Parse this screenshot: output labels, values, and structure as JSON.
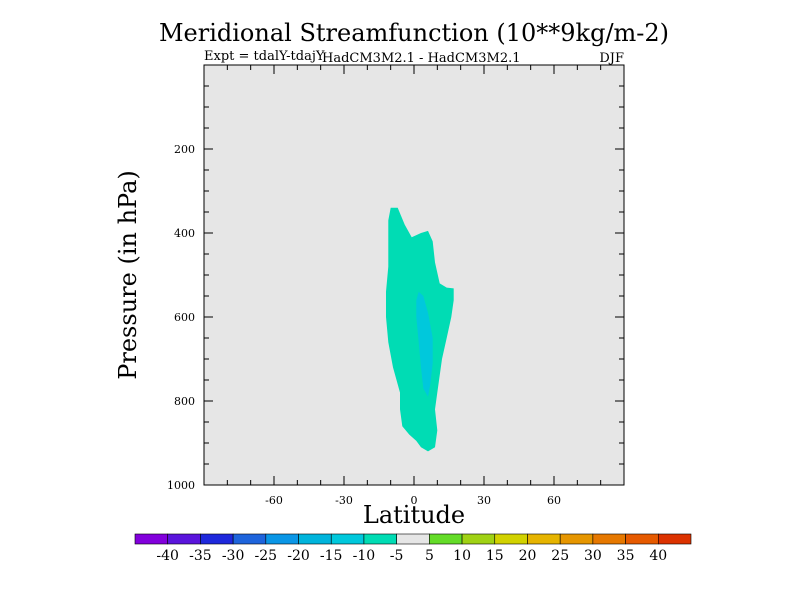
{
  "header": {
    "title": "Meridional Streamfunction (10**9kg/m-2)",
    "experiment": "Expt = tdalY-tdajY",
    "models": "HadCM3M2.1 - HadCM3M2.1",
    "season": "DJF"
  },
  "chart_data": {
    "type": "contour",
    "title": "Meridional Streamfunction (10**9kg/m-2)",
    "xlabel": "Latitude",
    "ylabel": "Pressure (in hPa)",
    "xlim": [
      -90,
      90
    ],
    "ylim": [
      0,
      1000
    ],
    "y_inverted": true,
    "x_ticks": [
      -60,
      -30,
      0,
      30,
      60
    ],
    "y_ticks": [
      200,
      400,
      600,
      800,
      1000
    ],
    "background_color": "#e6e6e6",
    "contour_regions": [
      {
        "name": "-10 to -5",
        "color": "#00dcb4",
        "points": [
          [
            -10,
            340
          ],
          [
            -7,
            340
          ],
          [
            -4,
            380
          ],
          [
            -1,
            410
          ],
          [
            3,
            400
          ],
          [
            6,
            395
          ],
          [
            8,
            420
          ],
          [
            9,
            470
          ],
          [
            11,
            520
          ],
          [
            14,
            530
          ],
          [
            17,
            532
          ],
          [
            17,
            560
          ],
          [
            16,
            600
          ],
          [
            14,
            650
          ],
          [
            12,
            700
          ],
          [
            10,
            780
          ],
          [
            9,
            820
          ],
          [
            10,
            870
          ],
          [
            9,
            910
          ],
          [
            6,
            920
          ],
          [
            3,
            910
          ],
          [
            1,
            895
          ],
          [
            -2,
            880
          ],
          [
            -5,
            860
          ],
          [
            -6,
            820
          ],
          [
            -6,
            780
          ],
          [
            -9,
            720
          ],
          [
            -11,
            660
          ],
          [
            -12,
            600
          ],
          [
            -12,
            540
          ],
          [
            -11,
            480
          ],
          [
            -11,
            420
          ],
          [
            -11,
            370
          ]
        ]
      },
      {
        "name": "-15 to -10",
        "color": "#00c8dc",
        "points": [
          [
            2,
            540
          ],
          [
            4,
            550
          ],
          [
            6,
            590
          ],
          [
            8,
            650
          ],
          [
            8,
            710
          ],
          [
            7,
            760
          ],
          [
            6,
            790
          ],
          [
            4,
            770
          ],
          [
            3,
            720
          ],
          [
            2,
            660
          ],
          [
            1,
            600
          ],
          [
            1,
            560
          ]
        ]
      }
    ],
    "colorbar": {
      "labels": [
        "-40",
        "-35",
        "-30",
        "-25",
        "-20",
        "-15",
        "-10",
        "-5",
        "5",
        "10",
        "15",
        "20",
        "25",
        "30",
        "35",
        "40"
      ],
      "colors": [
        "#8200dc",
        "#5a14dc",
        "#1e28dc",
        "#1e64dc",
        "#0a96e6",
        "#00b4dc",
        "#00c8dc",
        "#00dcb4",
        "#e6e6e6",
        "#64dc28",
        "#a0d214",
        "#d2d200",
        "#e6b400",
        "#e69600",
        "#e67800",
        "#e65a00",
        "#dc3200"
      ]
    }
  }
}
